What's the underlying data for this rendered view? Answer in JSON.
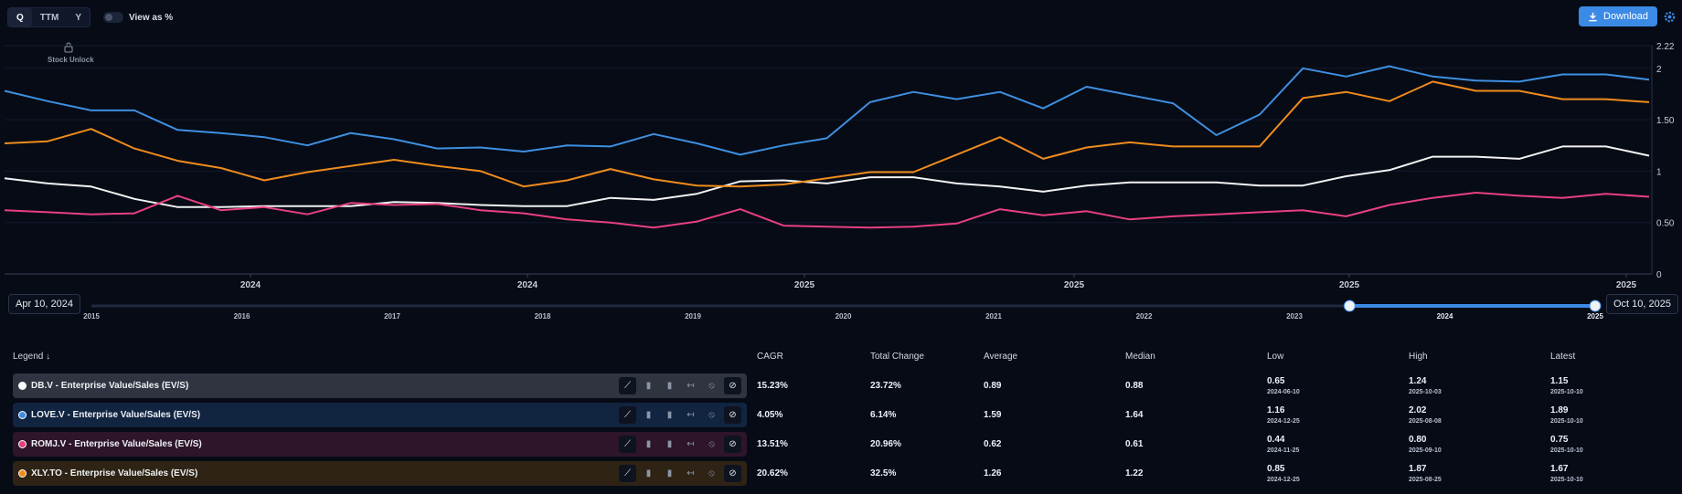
{
  "controls": {
    "period_options": [
      "Q",
      "TTM",
      "Y"
    ],
    "active_period": "Q",
    "view_as_pct_label": "View as %",
    "download_label": "Download"
  },
  "annotation": {
    "stock_unlock": "Stock Unlock"
  },
  "chart_data": {
    "type": "line",
    "y_ticks": [
      "2.22",
      "2",
      "1.50",
      "1",
      "0.50",
      "0"
    ],
    "ylim": [
      0,
      2.22
    ],
    "x_tick_labels": [
      "2024",
      "2024",
      "2025",
      "2025",
      "2025",
      "2025"
    ],
    "grid": "horizontal",
    "series": [
      {
        "name": "DB.V - Enterprise Value/Sales (EV/S)",
        "color": "#f2f2f2",
        "values": [
          0.93,
          0.88,
          0.85,
          0.73,
          0.65,
          0.65,
          0.66,
          0.66,
          0.66,
          0.7,
          0.69,
          0.67,
          0.66,
          0.66,
          0.74,
          0.72,
          0.78,
          0.9,
          0.91,
          0.88,
          0.94,
          0.94,
          0.88,
          0.85,
          0.8,
          0.86,
          0.89,
          0.89,
          0.89,
          0.86,
          0.86,
          0.95,
          1.01,
          1.14,
          1.14,
          1.12,
          1.24,
          1.24,
          1.15
        ]
      },
      {
        "name": "LOVE.V - Enterprise Value/Sales (EV/S)",
        "color": "#3f8fe0",
        "values": [
          1.78,
          1.68,
          1.59,
          1.59,
          1.4,
          1.37,
          1.33,
          1.25,
          1.37,
          1.31,
          1.22,
          1.23,
          1.19,
          1.25,
          1.24,
          1.36,
          1.27,
          1.16,
          1.25,
          1.32,
          1.67,
          1.77,
          1.7,
          1.77,
          1.61,
          1.82,
          1.74,
          1.66,
          1.35,
          1.55,
          2.0,
          1.92,
          2.02,
          1.92,
          1.88,
          1.87,
          1.94,
          1.94,
          1.89
        ]
      },
      {
        "name": "ROMJ.V - Enterprise Value/Sales (EV/S)",
        "color": "#e8407f",
        "values": [
          0.62,
          0.6,
          0.58,
          0.59,
          0.76,
          0.62,
          0.65,
          0.58,
          0.69,
          0.67,
          0.68,
          0.62,
          0.59,
          0.53,
          0.5,
          0.45,
          0.51,
          0.63,
          0.47,
          0.46,
          0.45,
          0.46,
          0.49,
          0.63,
          0.57,
          0.61,
          0.53,
          0.56,
          0.58,
          0.6,
          0.62,
          0.56,
          0.67,
          0.74,
          0.79,
          0.76,
          0.74,
          0.78,
          0.75
        ]
      },
      {
        "name": "XLY.TO - Enterprise Value/Sales (EV/S)",
        "color": "#ef8c1c",
        "values": [
          1.27,
          1.29,
          1.41,
          1.22,
          1.1,
          1.03,
          0.91,
          0.99,
          1.05,
          1.11,
          1.05,
          1.0,
          0.85,
          0.91,
          1.02,
          0.92,
          0.86,
          0.85,
          0.87,
          0.93,
          0.99,
          0.99,
          1.16,
          1.33,
          1.12,
          1.23,
          1.28,
          1.24,
          1.24,
          1.24,
          1.71,
          1.77,
          1.68,
          1.87,
          1.78,
          1.78,
          1.7,
          1.7,
          1.67
        ]
      }
    ]
  },
  "range": {
    "start_label": "Apr 10, 2024",
    "end_label": "Oct 10, 2025",
    "years": [
      "2015",
      "2016",
      "2017",
      "2018",
      "2019",
      "2020",
      "2021",
      "2022",
      "2023",
      "2024",
      "2025"
    ],
    "selected_start_fraction": 0.8367,
    "selected_end_fraction": 1.0
  },
  "table": {
    "legend_header": "Legend",
    "columns": [
      "CAGR",
      "Total Change",
      "Average",
      "Median",
      "Low",
      "High",
      "Latest"
    ],
    "rows": [
      {
        "name": "DB.V - Enterprise Value/Sales (EV/S)",
        "bg": "#2f3440",
        "dot": "#ffffff",
        "cagr": "15.23%",
        "total": "23.72%",
        "avg": "0.89",
        "median": "0.88",
        "low": "0.65",
        "low_date": "2024-06-10",
        "high": "1.24",
        "high_date": "2025-10-03",
        "latest": "1.15",
        "latest_date": "2025-10-10"
      },
      {
        "name": "LOVE.V - Enterprise Value/Sales (EV/S)",
        "bg": "#112440",
        "dot": "#3f8fe0",
        "cagr": "4.05%",
        "total": "6.14%",
        "avg": "1.59",
        "median": "1.64",
        "low": "1.16",
        "low_date": "2024-12-25",
        "high": "2.02",
        "high_date": "2025-08-08",
        "latest": "1.89",
        "latest_date": "2025-10-10"
      },
      {
        "name": "ROMJ.V - Enterprise Value/Sales (EV/S)",
        "bg": "#2e1529",
        "dot": "#e8407f",
        "cagr": "13.51%",
        "total": "20.96%",
        "avg": "0.62",
        "median": "0.61",
        "low": "0.44",
        "low_date": "2024-11-25",
        "high": "0.80",
        "high_date": "2025-09-10",
        "latest": "0.75",
        "latest_date": "2025-10-10"
      },
      {
        "name": "XLY.TO - Enterprise Value/Sales (EV/S)",
        "bg": "#2e2314",
        "dot": "#ef8c1c",
        "cagr": "20.62%",
        "total": "32.5%",
        "avg": "1.26",
        "median": "1.22",
        "low": "0.85",
        "low_date": "2024-12-25",
        "high": "1.87",
        "high_date": "2025-08-25",
        "latest": "1.67",
        "latest_date": "2025-10-10"
      }
    ]
  }
}
